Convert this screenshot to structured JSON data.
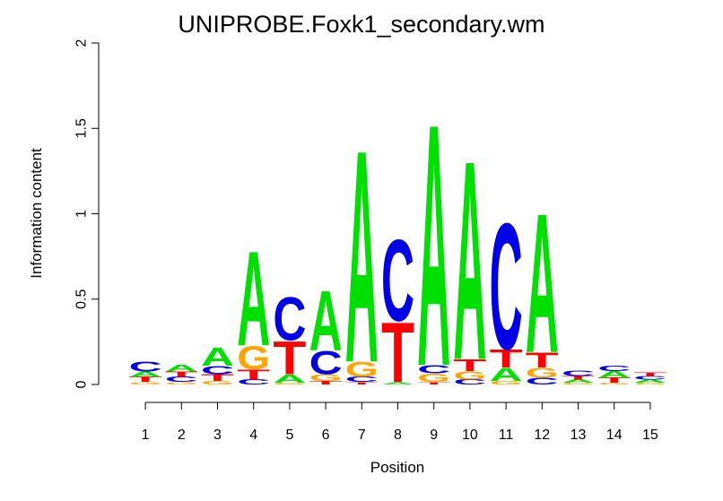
{
  "chart_data": {
    "type": "sequence-logo",
    "title": "UNIPROBE.Foxk1_secondary.wm",
    "xlabel": "Position",
    "ylabel": "Information content",
    "ylim": [
      0,
      2
    ],
    "y_ticks": [
      "0",
      "0.5",
      "1",
      "1.5",
      "2"
    ],
    "y_tick_values": [
      0,
      0.5,
      1,
      1.5,
      2
    ],
    "positions": [
      "1",
      "2",
      "3",
      "4",
      "5",
      "6",
      "7",
      "8",
      "9",
      "10",
      "11",
      "12",
      "13",
      "14",
      "15"
    ],
    "colors": {
      "A": "#00e000",
      "C": "#0000e6",
      "G": "#ffa500",
      "T": "#ff0000"
    },
    "stacks": [
      [
        {
          "letter": "G",
          "height": 0.015
        },
        {
          "letter": "T",
          "height": 0.03
        },
        {
          "letter": "A",
          "height": 0.03
        },
        {
          "letter": "C",
          "height": 0.06
        }
      ],
      [
        {
          "letter": "G",
          "height": 0.015
        },
        {
          "letter": "C",
          "height": 0.03
        },
        {
          "letter": "T",
          "height": 0.03
        },
        {
          "letter": "A",
          "height": 0.04
        }
      ],
      [
        {
          "letter": "G",
          "height": 0.02
        },
        {
          "letter": "T",
          "height": 0.04
        },
        {
          "letter": "C",
          "height": 0.05
        },
        {
          "letter": "A",
          "height": 0.11
        }
      ],
      [
        {
          "letter": "C",
          "height": 0.03
        },
        {
          "letter": "T",
          "height": 0.06
        },
        {
          "letter": "G",
          "height": 0.14
        },
        {
          "letter": "A",
          "height": 0.57
        }
      ],
      [
        {
          "letter": "G",
          "height": 0.01
        },
        {
          "letter": "A",
          "height": 0.05
        },
        {
          "letter": "T",
          "height": 0.2
        },
        {
          "letter": "C",
          "height": 0.26
        }
      ],
      [
        {
          "letter": "T",
          "height": 0.02
        },
        {
          "letter": "G",
          "height": 0.04
        },
        {
          "letter": "C",
          "height": 0.14
        },
        {
          "letter": "A",
          "height": 0.36
        }
      ],
      [
        {
          "letter": "T",
          "height": 0.015
        },
        {
          "letter": "C",
          "height": 0.03
        },
        {
          "letter": "G",
          "height": 0.09
        },
        {
          "letter": "A",
          "height": 1.28
        }
      ],
      [
        {
          "letter": "A",
          "height": 0.015
        },
        {
          "letter": "T",
          "height": 0.36
        },
        {
          "letter": "C",
          "height": 0.49
        }
      ],
      [
        {
          "letter": "T",
          "height": 0.015
        },
        {
          "letter": "G",
          "height": 0.05
        },
        {
          "letter": "C",
          "height": 0.05
        },
        {
          "letter": "A",
          "height": 1.46
        }
      ],
      [
        {
          "letter": "C",
          "height": 0.03
        },
        {
          "letter": "G",
          "height": 0.05
        },
        {
          "letter": "T",
          "height": 0.07
        },
        {
          "letter": "A",
          "height": 1.2
        }
      ],
      [
        {
          "letter": "G",
          "height": 0.02
        },
        {
          "letter": "A",
          "height": 0.08
        },
        {
          "letter": "T",
          "height": 0.11
        },
        {
          "letter": "C",
          "height": 0.76
        }
      ],
      [
        {
          "letter": "C",
          "height": 0.04
        },
        {
          "letter": "G",
          "height": 0.06
        },
        {
          "letter": "T",
          "height": 0.09
        },
        {
          "letter": "A",
          "height": 0.84
        }
      ],
      [
        {
          "letter": "G",
          "height": 0.01
        },
        {
          "letter": "A",
          "height": 0.02
        },
        {
          "letter": "T",
          "height": 0.02
        },
        {
          "letter": "C",
          "height": 0.03
        }
      ],
      [
        {
          "letter": "G",
          "height": 0.01
        },
        {
          "letter": "T",
          "height": 0.03
        },
        {
          "letter": "A",
          "height": 0.04
        },
        {
          "letter": "C",
          "height": 0.03
        }
      ],
      [
        {
          "letter": "G",
          "height": 0.01
        },
        {
          "letter": "A",
          "height": 0.02
        },
        {
          "letter": "C",
          "height": 0.02
        },
        {
          "letter": "T",
          "height": 0.02
        }
      ]
    ]
  }
}
